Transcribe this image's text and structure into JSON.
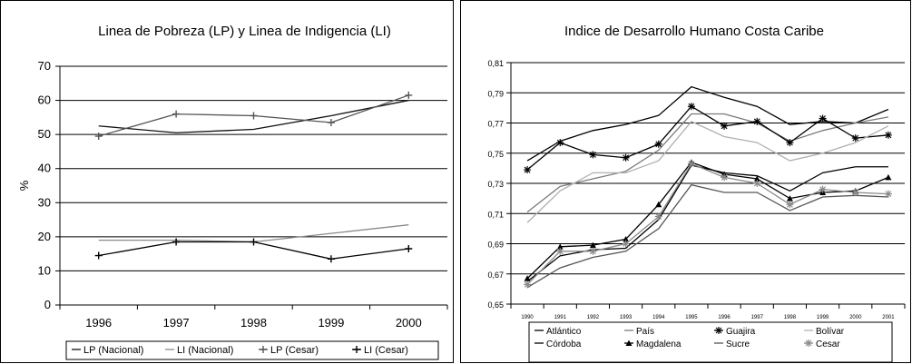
{
  "chart_data": [
    {
      "type": "line",
      "title": "Linea de Pobreza (LP) y Linea de Indigencia (LI)",
      "xlabel": "",
      "ylabel": "%",
      "categories": [
        "1996",
        "1997",
        "1998",
        "1999",
        "2000"
      ],
      "ylim": [
        0,
        70
      ],
      "yticks": [
        0,
        10,
        20,
        30,
        40,
        50,
        60,
        70
      ],
      "grid": "horizontal",
      "legend_position": "bottom",
      "series": [
        {
          "name": "LP (Nacional)",
          "values": [
            52.5,
            50.5,
            51.5,
            55.5,
            60
          ],
          "color": "#111111",
          "marker": "none"
        },
        {
          "name": "LI (Nacional)",
          "values": [
            19,
            19,
            18.5,
            21,
            23.5
          ],
          "color": "#8a8a8a",
          "marker": "none"
        },
        {
          "name": "LP (Cesar)",
          "values": [
            49.5,
            56,
            55.5,
            53.5,
            61.5
          ],
          "color": "#555555",
          "marker": "plus"
        },
        {
          "name": "LI (Cesar)",
          "values": [
            14.5,
            18.5,
            18.5,
            13.5,
            16.5
          ],
          "color": "#000000",
          "marker": "plus"
        }
      ]
    },
    {
      "type": "line",
      "title": "Indice de Desarrollo Humano Costa Caribe",
      "xlabel": "",
      "ylabel": "",
      "categories": [
        "1990",
        "1991",
        "1992",
        "1993",
        "1994",
        "1995",
        "1996",
        "1997",
        "1998",
        "1999",
        "2000",
        "2001"
      ],
      "ylim": [
        0.65,
        0.81
      ],
      "yticks": [
        "0,65",
        "0,67",
        "0,69",
        "0,71",
        "0,73",
        "0,75",
        "0,77",
        "0,79",
        "0,81"
      ],
      "grid": "horizontal",
      "legend_position": "bottom",
      "series": [
        {
          "name": "Atlántico",
          "values": [
            0.745,
            0.758,
            0.765,
            0.769,
            0.775,
            0.794,
            0.787,
            0.781,
            0.769,
            0.771,
            0.77,
            0.779
          ],
          "color": "#000000",
          "marker": "none"
        },
        {
          "name": "País",
          "values": [
            0.711,
            0.728,
            0.733,
            0.738,
            0.752,
            0.776,
            0.776,
            0.77,
            0.758,
            0.765,
            0.77,
            0.774
          ],
          "color": "#7a7a7a",
          "marker": "none"
        },
        {
          "name": "Guajira",
          "values": [
            0.739,
            0.757,
            0.749,
            0.747,
            0.756,
            0.781,
            0.768,
            0.771,
            0.757,
            0.773,
            0.76,
            0.762
          ],
          "color": "#000000",
          "marker": "star"
        },
        {
          "name": "Bolívar",
          "values": [
            0.704,
            0.725,
            0.737,
            0.737,
            0.745,
            0.771,
            0.761,
            0.757,
            0.745,
            0.75,
            0.757,
            0.768
          ],
          "color": "#b0b0b0",
          "marker": "none"
        },
        {
          "name": "Córdoba",
          "values": [
            0.665,
            0.682,
            0.686,
            0.687,
            0.706,
            0.742,
            0.737,
            0.735,
            0.725,
            0.737,
            0.741,
            0.741
          ],
          "color": "#000000",
          "marker": "none"
        },
        {
          "name": "Magdalena",
          "values": [
            0.667,
            0.688,
            0.689,
            0.693,
            0.716,
            0.744,
            0.736,
            0.733,
            0.72,
            0.724,
            0.725,
            0.734
          ],
          "color": "#000000",
          "marker": "triangle"
        },
        {
          "name": "Sucre",
          "values": [
            0.661,
            0.674,
            0.681,
            0.685,
            0.7,
            0.729,
            0.724,
            0.724,
            0.712,
            0.721,
            0.722,
            0.721
          ],
          "color": "#555555",
          "marker": "none"
        },
        {
          "name": "Cesar",
          "values": [
            0.663,
            0.685,
            0.685,
            0.69,
            0.708,
            0.743,
            0.734,
            0.73,
            0.716,
            0.726,
            0.724,
            0.723
          ],
          "color": "#8a8a8a",
          "marker": "star"
        }
      ]
    }
  ]
}
